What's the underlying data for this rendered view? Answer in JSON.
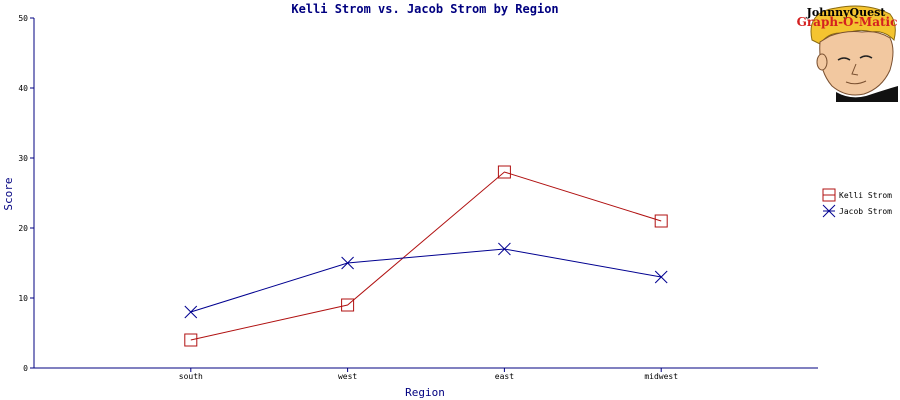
{
  "chart_data": {
    "type": "line",
    "title": "Kelli Strom vs. Jacob Strom by Region",
    "xlabel": "Region",
    "ylabel": "Score",
    "categories": [
      "south",
      "west",
      "east",
      "midwest"
    ],
    "ylim": [
      0,
      50
    ],
    "yticks": [
      0,
      10,
      20,
      30,
      40,
      50
    ],
    "grid": false,
    "legend_position": "right",
    "series": [
      {
        "name": "Kelli Strom",
        "values": [
          4,
          9,
          28,
          21
        ],
        "color": "#b01010",
        "marker": "square"
      },
      {
        "name": "Jacob Strom",
        "values": [
          8,
          15,
          17,
          13
        ],
        "color": "#000090",
        "marker": "x"
      }
    ]
  },
  "logo": {
    "line1": "JohnnyQuest",
    "line2": "Graph-O-Matic"
  }
}
